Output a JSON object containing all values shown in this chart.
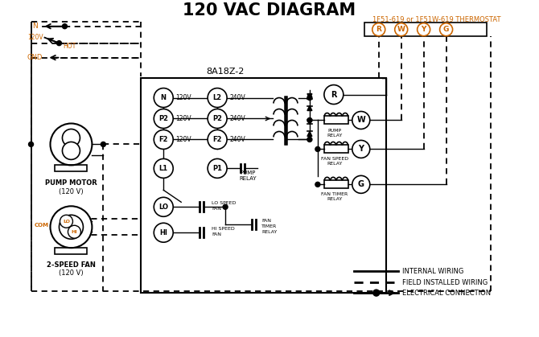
{
  "title": "120 VAC DIAGRAM",
  "title_fontsize": 15,
  "bg_color": "#ffffff",
  "orange_color": "#cc6600",
  "black_color": "#000000",
  "thermostat_label": "1F51-619 or 1F51W-619 THERMOSTAT",
  "control_box_label": "8A18Z-2",
  "figsize": [
    6.7,
    4.19
  ],
  "dpi": 100
}
